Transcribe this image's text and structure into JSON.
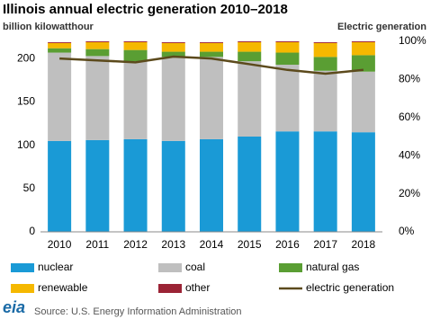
{
  "chart_data": {
    "type": "bar",
    "stacked": true,
    "title": "Illinois annual electric generation 2010–2018",
    "y_label": "billion kilowatthour",
    "y2_label": "Electric generation",
    "source": "Source: U.S. Energy Information Administration",
    "logo": "eia",
    "categories": [
      "2010",
      "2011",
      "2012",
      "2013",
      "2014",
      "2015",
      "2016",
      "2017",
      "2018"
    ],
    "series": [
      {
        "name": "nuclear",
        "color": "#1a9ad6",
        "values": [
          105,
          106,
          107,
          105,
          107,
          110,
          116,
          116,
          115
        ]
      },
      {
        "name": "coal",
        "color": "#bfbfbf",
        "values": [
          102,
          97,
          90,
          97,
          95,
          87,
          77,
          70,
          70
        ]
      },
      {
        "name": "natural gas",
        "color": "#5a9e33",
        "values": [
          5,
          8,
          13,
          6,
          6,
          11,
          14,
          16,
          19
        ]
      },
      {
        "name": "renewable",
        "color": "#f5b800",
        "values": [
          6,
          8,
          9,
          10,
          10,
          11,
          12,
          16,
          15
        ]
      },
      {
        "name": "other",
        "color": "#9b2335",
        "values": [
          1,
          1,
          1,
          1,
          1,
          1,
          1,
          1,
          1
        ]
      },
      {
        "name": "electric generation",
        "color": "#5c4a1c",
        "type": "line",
        "axis": "y2",
        "values": [
          91,
          90,
          89,
          92,
          91,
          88,
          85,
          83,
          85
        ]
      }
    ],
    "ylim": [
      0,
      220
    ],
    "yticks": [
      0,
      50,
      100,
      150,
      200
    ],
    "y2lim": [
      0,
      100
    ],
    "y2ticks": [
      {
        "value": 0,
        "label": "0%"
      },
      {
        "value": 20,
        "label": "20%"
      },
      {
        "value": 40,
        "label": "40%"
      },
      {
        "value": 60,
        "label": "60%"
      },
      {
        "value": 80,
        "label": "80%"
      },
      {
        "value": 100,
        "label": "100%"
      }
    ],
    "grid": false
  }
}
